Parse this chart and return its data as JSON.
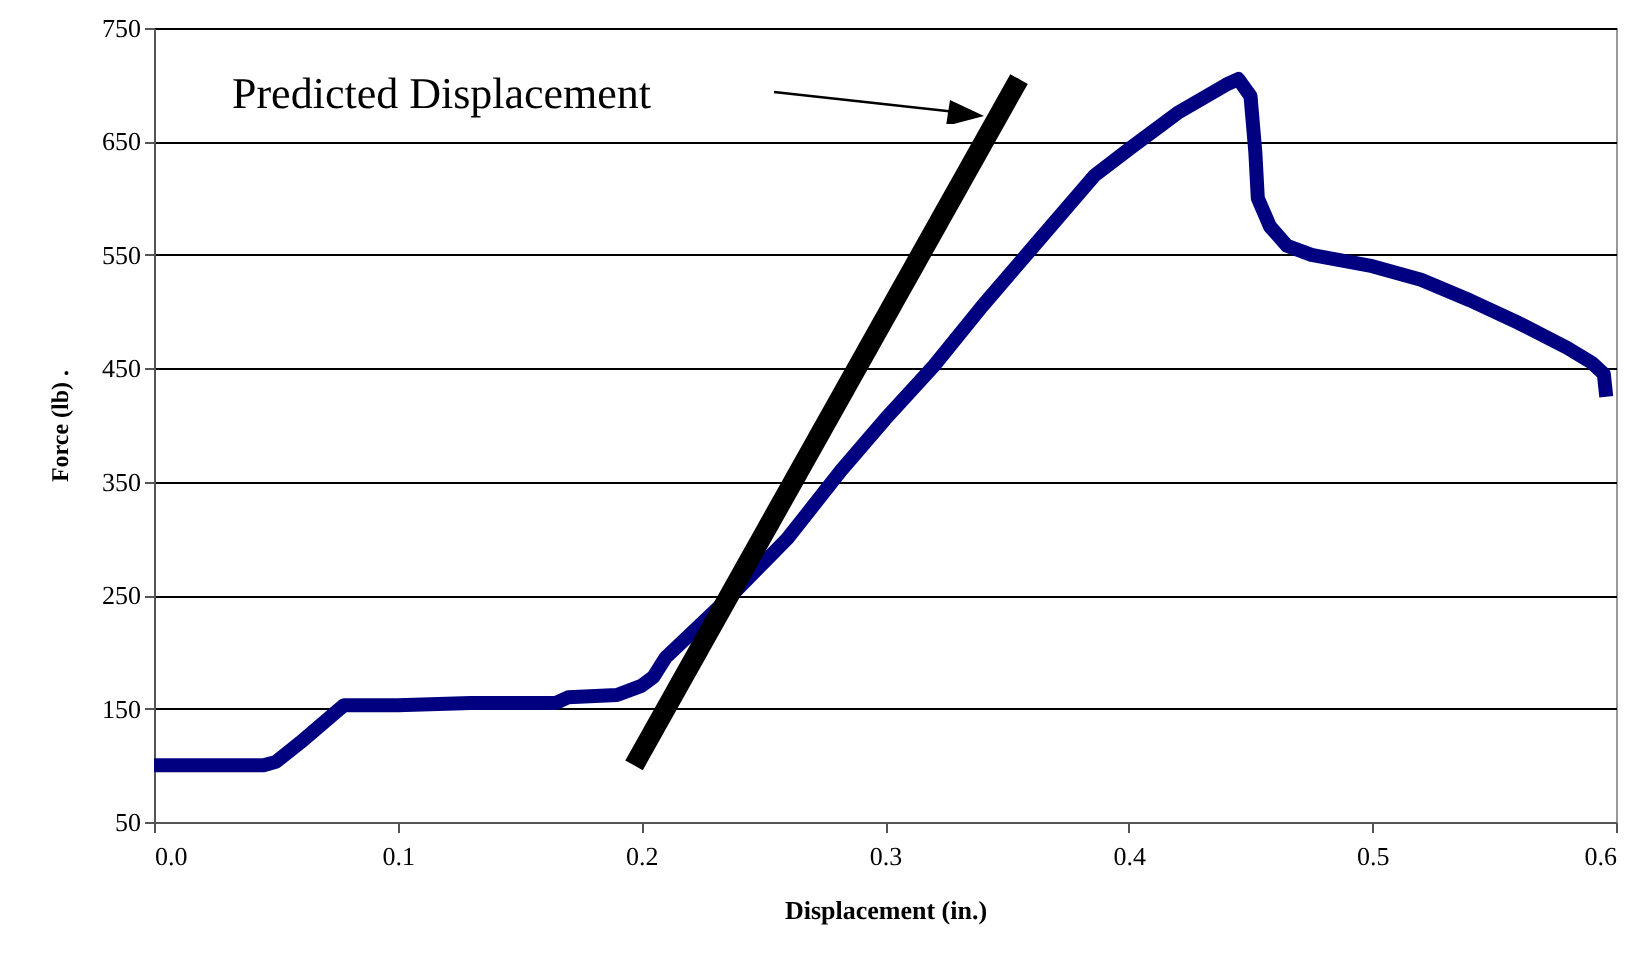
{
  "chart_data": {
    "type": "line",
    "xlabel": "Displacement (in.)",
    "ylabel": "Force (lb) .",
    "xlim": [
      0,
      0.6
    ],
    "xticks": [
      {
        "value": 0,
        "label": "0.0"
      },
      0.1,
      0.2,
      0.3,
      0.4,
      0.5,
      0.6
    ],
    "ylim": [
      50,
      750
    ],
    "yticks": [
      50,
      150,
      250,
      350,
      450,
      550,
      650,
      750
    ],
    "grid": "y",
    "series": [
      {
        "color": "#000080",
        "x": [
          0,
          0.045,
          0.05,
          0.06,
          0.078,
          0.1,
          0.13,
          0.165,
          0.17,
          0.19,
          0.2,
          0.205,
          0.21,
          0.238,
          0.26,
          0.282,
          0.3,
          0.32,
          0.34,
          0.36,
          0.386,
          0.4,
          0.42,
          0.44,
          0.445,
          0.45,
          0.452,
          0.453,
          0.458,
          0.465,
          0.475,
          0.5,
          0.52,
          0.54,
          0.56,
          0.58,
          0.59,
          0.595,
          0.596
        ],
        "values": [
          100,
          100,
          103,
          120,
          153,
          153,
          155,
          155,
          160,
          162,
          170,
          178,
          195,
          252,
          300,
          360,
          405,
          452,
          505,
          555,
          620,
          643,
          675,
          700,
          705,
          690,
          640,
          600,
          575,
          558,
          550,
          540,
          528,
          510,
          490,
          468,
          455,
          445,
          425
        ]
      },
      {
        "color": "#000000",
        "x": [
          0.197,
          0.355
        ],
        "values": [
          100,
          705
        ]
      }
    ],
    "annotations": [
      "Predicted Displacement"
    ]
  }
}
